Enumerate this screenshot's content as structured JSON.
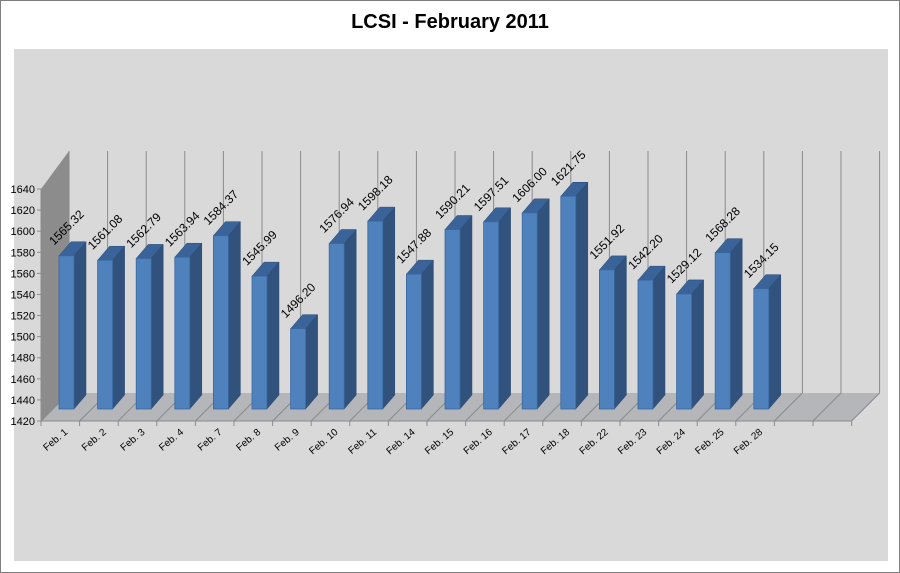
{
  "chart_data": {
    "type": "bar",
    "title": "LCSI - February 2011",
    "xlabel": "",
    "ylabel": "",
    "ylim": [
      1420,
      1640
    ],
    "yticks": [
      1420,
      1440,
      1460,
      1480,
      1500,
      1520,
      1540,
      1560,
      1580,
      1600,
      1620,
      1640
    ],
    "grid": true,
    "legend": "none",
    "style": "3d-column",
    "bar_color": "#4f81bd",
    "categories": [
      "Feb. 1",
      "Feb. 2",
      "Feb. 3",
      "Feb. 4",
      "Feb. 7",
      "Feb. 8",
      "Feb. 9",
      "Feb. 10",
      "Feb. 11",
      "Feb. 14",
      "Feb. 15",
      "Feb. 16",
      "Feb. 17",
      "Feb. 18",
      "Feb. 22",
      "Feb. 23",
      "Feb. 24",
      "Feb. 25",
      "Feb. 28"
    ],
    "values": [
      1565.32,
      1561.08,
      1562.79,
      1563.94,
      1584.37,
      1545.99,
      1496.2,
      1576.94,
      1598.18,
      1547.88,
      1590.21,
      1597.51,
      1606.0,
      1621.75,
      1551.92,
      1542.2,
      1529.12,
      1568.28,
      1534.15
    ],
    "labels": [
      "1565.32",
      "1561.08",
      "1562.79",
      "1563.94",
      "1584.37",
      "1545.99",
      "1496.20",
      "1576.94",
      "1598.18",
      "1547.88",
      "1590.21",
      "1597.51",
      "1606.00",
      "1621.75",
      "1551.92",
      "1542.20",
      "1529.12",
      "1568.28",
      "1534.15"
    ]
  }
}
